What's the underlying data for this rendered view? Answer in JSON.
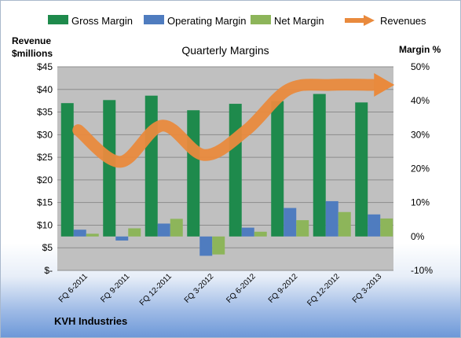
{
  "chart_data": {
    "type": "bar",
    "title": "Quarterly Margins",
    "company": "KVH Industries",
    "left_axis": {
      "title_line1": "Revenue",
      "title_line2": "$millions",
      "min": 0,
      "max": 45,
      "step": 5,
      "tick_labels": [
        "$-",
        "$5",
        "$10",
        "$15",
        "$20",
        "$25",
        "$30",
        "$35",
        "$40",
        "$45"
      ]
    },
    "right_axis": {
      "title": "Margin %",
      "min": -10,
      "max": 50,
      "step": 10,
      "tick_labels": [
        "-10%",
        "0%",
        "10%",
        "20%",
        "30%",
        "40%",
        "50%"
      ]
    },
    "categories": [
      "FQ 6-2011",
      "FQ 9-2011",
      "FQ 12-2011",
      "FQ 3-2012",
      "FQ 6-2012",
      "FQ 9-2012",
      "FQ 12-2012",
      "FQ 3-2013"
    ],
    "series": [
      {
        "name": "Gross Margin",
        "axis": "right",
        "color": "#1e8a4c",
        "values": [
          39.3,
          40.2,
          41.5,
          37.2,
          39.1,
          39.9,
          42.0,
          39.5
        ]
      },
      {
        "name": "Operating Margin",
        "axis": "right",
        "color": "#4f7cbf",
        "values": [
          2.0,
          -1.2,
          3.8,
          -5.7,
          2.6,
          8.4,
          10.4,
          6.5
        ]
      },
      {
        "name": "Net Margin",
        "axis": "right",
        "color": "#8db55a",
        "values": [
          0.8,
          2.4,
          5.2,
          -5.3,
          1.4,
          4.8,
          7.2,
          5.3
        ]
      },
      {
        "name": "Revenues",
        "axis": "left",
        "color": "#e98a3d",
        "type": "line",
        "values": [
          31.0,
          24.0,
          32.0,
          25.5,
          31.0,
          40.0,
          41.0,
          41.0
        ]
      }
    ],
    "background_color": "#c0c0c0",
    "grid": true,
    "legend_position": "top"
  }
}
